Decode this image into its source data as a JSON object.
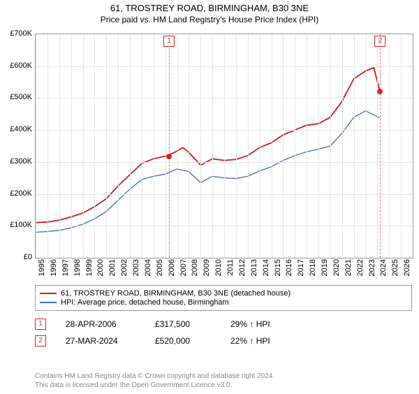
{
  "header": {
    "title": "61, TROSTREY ROAD, BIRMINGHAM, B30 3NE",
    "subtitle": "Price paid vs. HM Land Registry's House Price Index (HPI)"
  },
  "chart": {
    "type": "line",
    "background_color": "#ffffff",
    "grid_color": "#e6e6e6",
    "border_color": "#999999",
    "xlim": [
      1995,
      2027
    ],
    "ylim": [
      0,
      700000
    ],
    "ytick_step": 100000,
    "x_ticks": [
      1995,
      1996,
      1997,
      1998,
      1999,
      2000,
      2001,
      2002,
      2003,
      2004,
      2005,
      2006,
      2007,
      2008,
      2009,
      2010,
      2011,
      2012,
      2013,
      2014,
      2015,
      2016,
      2017,
      2018,
      2019,
      2020,
      2021,
      2022,
      2023,
      2024,
      2025,
      2026
    ],
    "y_tick_labels": [
      "£0",
      "£100K",
      "£200K",
      "£300K",
      "£400K",
      "£500K",
      "£600K",
      "£700K"
    ],
    "label_fontsize": 11,
    "series": [
      {
        "key": "property",
        "label": "61, TROSTREY ROAD, BIRMINGHAM, B30 3NE (detached house)",
        "color": "#c81e1e",
        "line_width": 1.8,
        "x": [
          1995,
          1996,
          1997,
          1998,
          1999,
          2000,
          2001,
          2002,
          2003,
          2004,
          2005,
          2006,
          2006.8,
          2007.5,
          2008,
          2009,
          2010,
          2011,
          2012,
          2013,
          2014,
          2015,
          2016,
          2017,
          2018,
          2019,
          2020,
          2021,
          2022,
          2023,
          2023.7,
          2024.2
        ],
        "y": [
          110000,
          112000,
          118000,
          128000,
          140000,
          160000,
          185000,
          225000,
          260000,
          295000,
          310000,
          318000,
          330000,
          345000,
          330000,
          290000,
          310000,
          305000,
          308000,
          320000,
          345000,
          360000,
          385000,
          400000,
          415000,
          420000,
          440000,
          490000,
          560000,
          585000,
          595000,
          522000
        ]
      },
      {
        "key": "hpi",
        "label": "HPI: Average price, detached house, Birmingham",
        "color": "#3b6db5",
        "line_width": 1.3,
        "x": [
          1995,
          1996,
          1997,
          1998,
          1999,
          2000,
          2001,
          2002,
          2003,
          2004,
          2005,
          2006,
          2007,
          2008,
          2009,
          2010,
          2011,
          2012,
          2013,
          2014,
          2015,
          2016,
          2017,
          2018,
          2019,
          2020,
          2021,
          2022,
          2023,
          2024.2
        ],
        "y": [
          80000,
          82000,
          86000,
          94000,
          105000,
          122000,
          145000,
          180000,
          215000,
          245000,
          255000,
          262000,
          278000,
          270000,
          235000,
          255000,
          250000,
          248000,
          255000,
          272000,
          285000,
          305000,
          320000,
          332000,
          340000,
          350000,
          390000,
          440000,
          460000,
          438000
        ]
      }
    ],
    "markers": [
      {
        "num": "1",
        "x": 2006.33
      },
      {
        "num": "2",
        "x": 2024.24
      }
    ],
    "sale_points": [
      {
        "x": 2006.33,
        "y": 317500
      },
      {
        "x": 2024.24,
        "y": 520000
      }
    ]
  },
  "legend": {
    "items": [
      {
        "color": "#c81e1e",
        "label": "61, TROSTREY ROAD, BIRMINGHAM, B30 3NE (detached house)"
      },
      {
        "color": "#3b6db5",
        "label": "HPI: Average price, detached house, Birmingham"
      }
    ]
  },
  "sales": [
    {
      "num": "1",
      "date": "28-APR-2006",
      "price": "£317,500",
      "pct": "29%",
      "arrow": "↑",
      "ref": "HPI"
    },
    {
      "num": "2",
      "date": "27-MAR-2024",
      "price": "£520,000",
      "pct": "22%",
      "arrow": "↑",
      "ref": "HPI"
    }
  ],
  "attribution": {
    "line1": "Contains HM Land Registry data © Crown copyright and database right 2024.",
    "line2": "This data is licensed under the Open Government Licence v3.0."
  }
}
